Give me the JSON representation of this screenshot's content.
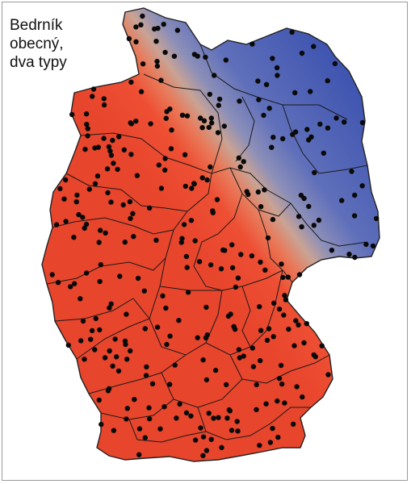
{
  "title_lines": [
    "Bedrník",
    "obecný,",
    "dva typy"
  ],
  "colors": {
    "north_type": "#4f63b8",
    "south_type": "#e84a30",
    "transition": "#c9a394",
    "border": "#222222",
    "point": "#0a0a0a"
  },
  "legend": []
}
